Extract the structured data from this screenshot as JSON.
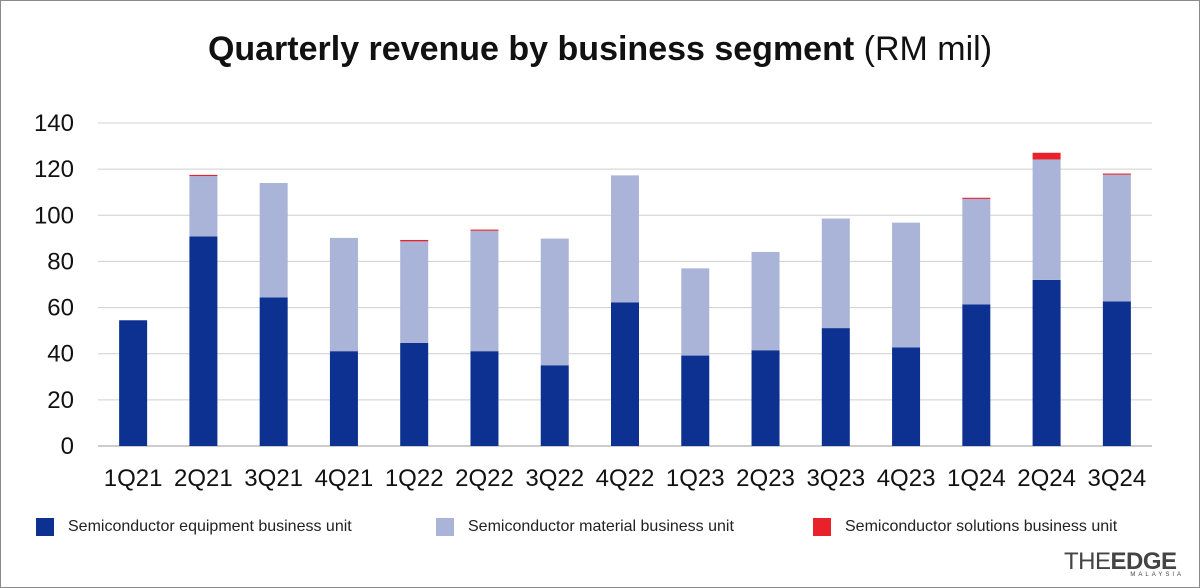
{
  "chart_data": {
    "type": "bar",
    "stacked": true,
    "title": "Quarterly revenue by business segment",
    "title_unit": "(RM mil)",
    "categories": [
      "1Q21",
      "2Q21",
      "3Q21",
      "4Q21",
      "1Q22",
      "2Q22",
      "3Q22",
      "4Q22",
      "1Q23",
      "2Q23",
      "3Q23",
      "4Q23",
      "1Q24",
      "2Q24",
      "3Q24"
    ],
    "series": [
      {
        "name": "Semiconductor equipment business unit",
        "color": "#0d3191",
        "values": [
          54.5,
          90.8,
          64.4,
          41.1,
          44.7,
          41.1,
          35.0,
          62.2,
          39.2,
          41.5,
          51.1,
          42.7,
          61.4,
          72.0,
          62.7
        ]
      },
      {
        "name": "Semiconductor material business unit",
        "color": "#a9b4d8",
        "values": [
          0,
          26.2,
          49.6,
          49.1,
          44.0,
          52.2,
          54.9,
          55.1,
          37.8,
          42.6,
          47.5,
          54.1,
          45.7,
          52.2,
          54.9
        ]
      },
      {
        "name": "Semiconductor solutions business unit",
        "color": "#e8212b",
        "values": [
          0,
          0.5,
          0,
          0,
          0.6,
          0.5,
          0,
          0,
          0,
          0,
          0,
          0,
          0.5,
          2.9,
          0.5
        ]
      }
    ],
    "ylim": [
      0,
      140
    ],
    "yticks": [
      0,
      20,
      40,
      60,
      80,
      100,
      120,
      140
    ],
    "grid": true,
    "legend_position": "bottom"
  },
  "branding": {
    "logo_prefix": "THE",
    "logo_main": "EDGE",
    "logo_sub": "MALAYSIA"
  }
}
